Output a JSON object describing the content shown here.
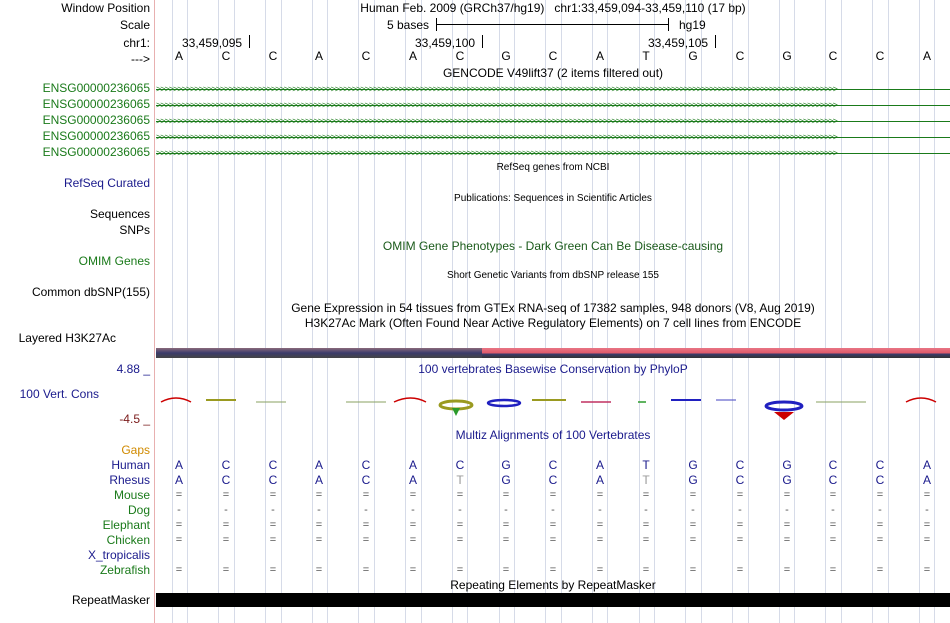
{
  "ruler": {
    "window_position_label": "Window Position",
    "scale_label": "Scale",
    "chrom_label": "chr1:",
    "strand_label": "--->",
    "assembly_title": "Human Feb. 2009 (GRCh37/hg19)",
    "position_text": "chr1:33,459,094-33,459,110 (17 bp)",
    "scale_text": "5 bases",
    "db_label": "hg19",
    "coord_1": "33,459,095",
    "coord_2": "33,459,100",
    "coord_3": "33,459,105"
  },
  "sequence": [
    "A",
    "C",
    "C",
    "A",
    "C",
    "A",
    "C",
    "G",
    "C",
    "A",
    "T",
    "G",
    "C",
    "G",
    "C",
    "C",
    "A"
  ],
  "tracks": {
    "gencode_title": "GENCODE V49lift37 (2 items filtered out)",
    "gencode_items": [
      "ENSG00000236065",
      "ENSG00000236065",
      "ENSG00000236065",
      "ENSG00000236065",
      "ENSG00000236065"
    ],
    "refseq_title": "RefSeq genes from NCBI",
    "refseq_label": "RefSeq Curated",
    "pubs_title": "Publications: Sequences in Scientific Articles",
    "sequences_label": "Sequences",
    "snps_label": "SNPs",
    "omim_title": "OMIM Gene Phenotypes - Dark Green Can Be Disease-causing",
    "omim_label": "OMIM Genes",
    "dbsnp_title": "Short Genetic Variants from dbSNP release 155",
    "dbsnp_label": "Common dbSNP(155)",
    "gtex_title": "Gene Expression in 54 tissues from GTEx RNA-seq of 17382 samples, 948 donors (V8, Aug 2019)",
    "h3k27ac_title": "H3K27Ac Mark (Often Found Near Active Regulatory Elements) on 7 cell lines from ENCODE",
    "h3k27ac_label": "Layered H3K27Ac",
    "phylop_title": "100 vertebrates Basewise Conservation by PhyloP",
    "phylop_label": "100 Vert. Cons",
    "phylop_max": "4.88 _",
    "phylop_min": "-4.5 _",
    "multiz_title": "Multiz Alignments of 100 Vertebrates",
    "gaps_label": "Gaps",
    "repeat_title": "Repeating Elements by RepeatMasker",
    "repeat_label": "RepeatMasker"
  },
  "alignment": {
    "species": [
      {
        "name": "Human",
        "row": [
          "A",
          "C",
          "C",
          "A",
          "C",
          "A",
          "C",
          "G",
          "C",
          "A",
          "T",
          "G",
          "C",
          "G",
          "C",
          "C",
          "A"
        ]
      },
      {
        "name": "Rhesus",
        "row": [
          "A",
          "C",
          "C",
          "A",
          "C",
          "A",
          "T",
          "G",
          "C",
          "A",
          "T",
          "G",
          "C",
          "G",
          "C",
          "C",
          "A"
        ]
      },
      {
        "name": "Mouse",
        "row": [
          "=",
          "=",
          "=",
          "=",
          "=",
          "=",
          "=",
          "=",
          "=",
          "=",
          "=",
          "=",
          "=",
          "=",
          "=",
          "=",
          "="
        ]
      },
      {
        "name": "Dog",
        "row": [
          "-",
          "-",
          "-",
          "-",
          "-",
          "-",
          "-",
          "-",
          "-",
          "-",
          "-",
          "-",
          "-",
          "-",
          "-",
          "-",
          "-"
        ]
      },
      {
        "name": "Elephant",
        "row": [
          "=",
          "=",
          "=",
          "=",
          "=",
          "=",
          "=",
          "=",
          "=",
          "=",
          "=",
          "=",
          "=",
          "=",
          "=",
          "=",
          "="
        ]
      },
      {
        "name": "Chicken",
        "row": [
          "=",
          "=",
          "=",
          "=",
          "=",
          "=",
          "=",
          "=",
          "=",
          "=",
          "=",
          "=",
          "=",
          "=",
          "=",
          "=",
          "="
        ]
      },
      {
        "name": "X_tropicalis",
        "row": []
      },
      {
        "name": "Zebrafish",
        "row": [
          "=",
          "=",
          "=",
          "=",
          "=",
          "=",
          "=",
          "=",
          "=",
          "=",
          "=",
          "=",
          "=",
          "=",
          "=",
          "=",
          "="
        ]
      }
    ]
  },
  "colors": {
    "blue_label": "#1a1a8c",
    "green_label": "#1a7a1a",
    "gaps_label": "#d08a00",
    "dark_label": "#003300"
  }
}
